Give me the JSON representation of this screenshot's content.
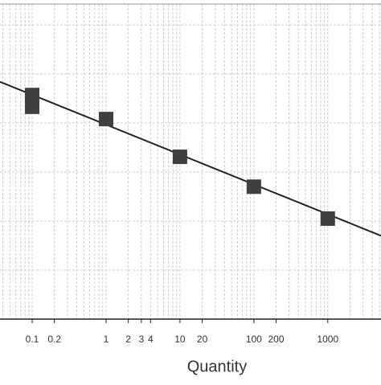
{
  "chart_data": {
    "type": "scatter",
    "x_label": "Quantity",
    "log_x": true,
    "xlim": [
      0.0367,
      5250
    ],
    "ylim": [
      0,
      64.26
    ],
    "xticks": [
      0.1,
      0.2,
      1,
      2,
      3,
      4,
      10,
      20,
      100,
      200,
      1000
    ],
    "xgrid": [
      0.04,
      0.05,
      0.06,
      0.07,
      0.08,
      0.09,
      0.1,
      0.2,
      0.3,
      0.4,
      0.5,
      0.6,
      0.7,
      0.8,
      0.9,
      1,
      2,
      3,
      4,
      5,
      6,
      7,
      8,
      9,
      10,
      20,
      30,
      40,
      50,
      60,
      70,
      80,
      90,
      100,
      200,
      300,
      400,
      500,
      600,
      700,
      800,
      900,
      1000,
      2000,
      3000,
      4000,
      5000
    ],
    "ygrid": [
      10,
      20,
      30,
      40,
      50,
      60
    ],
    "grid": true,
    "color": "#404040",
    "x": [
      0.1,
      0.1,
      1,
      10,
      100,
      1000
    ],
    "values": [
      45.7,
      43.3,
      40.8,
      33.1,
      27.0,
      20.5
    ],
    "trend": {
      "x": [
        0.0367,
        5250
      ],
      "values": [
        48.4,
        17.0
      ],
      "color": "#222222"
    }
  }
}
